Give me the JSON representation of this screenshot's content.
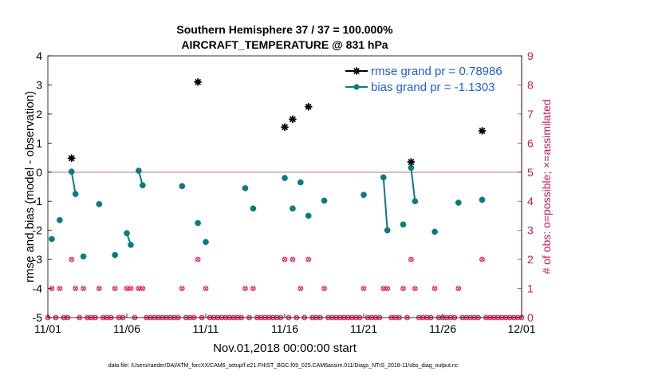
{
  "chart_data": {
    "type": "line",
    "title_line1": "Southern Hemisphere 37 / 37 = 100.000%",
    "title_line2": "AIRCRAFT_TEMPERATURE @ 831 hPa",
    "ylabel_left": "rmse and bias (model - observation)",
    "ylabel_right": "# of obs: o=possible; ×=assimilated",
    "xlabel": "Nov.01,2018 00:00:00 start",
    "footer": "data file: /Users/raeder/DAI/ATM_forcXX/CAM6_setup/f.e21.FHIST_BGC.f09_025.CAM6assim.011/Diags_NTrS_2018-11/obs_diag_output.nc",
    "ylim_left": [
      -5,
      4
    ],
    "ylim_right": [
      0,
      9
    ],
    "xlim": [
      1,
      31
    ],
    "x_ticks": [
      1,
      6,
      11,
      16,
      21,
      26,
      31
    ],
    "x_tick_labels": [
      "11/01",
      "11/06",
      "11/11",
      "11/16",
      "11/21",
      "11/26",
      "12/01"
    ],
    "y_left_ticks": [
      "-5",
      "-4",
      "-3",
      "-2",
      "-1",
      "0",
      "1",
      "2",
      "3",
      "4"
    ],
    "y_right_ticks": [
      "0",
      "1",
      "2",
      "3",
      "4",
      "5",
      "6",
      "7",
      "8",
      "9"
    ],
    "legend": [
      {
        "label": "rmse grand pr = 0.78986",
        "color": "#000000"
      },
      {
        "label": "bias grand pr = -1.1303",
        "color": "#0b7b7b"
      }
    ],
    "colors": {
      "rmse": "#000000",
      "bias": "#0b7b7b",
      "nobs": "#e0205e",
      "zero_line": "#c8aab8"
    },
    "series": [
      {
        "name": "rmse",
        "points": [
          [
            2.5,
            0.48
          ],
          [
            10.5,
            3.1
          ],
          [
            16.0,
            1.55
          ],
          [
            16.5,
            1.82
          ],
          [
            17.5,
            2.25
          ],
          [
            24.0,
            0.35
          ],
          [
            28.5,
            1.42
          ]
        ]
      },
      {
        "name": "bias",
        "segments": [
          [
            [
              1.25,
              -2.3
            ]
          ],
          [
            [
              1.75,
              -1.65
            ]
          ],
          [
            [
              2.5,
              0.02
            ],
            [
              2.75,
              -0.75
            ]
          ],
          [
            [
              3.25,
              -2.9
            ]
          ],
          [
            [
              4.25,
              -1.1
            ]
          ],
          [
            [
              5.25,
              -2.85
            ]
          ],
          [
            [
              6.0,
              -2.1
            ],
            [
              6.25,
              -2.5
            ]
          ],
          [
            [
              6.75,
              0.05
            ],
            [
              7.0,
              -0.45
            ]
          ],
          [
            [
              9.5,
              -0.48
            ]
          ],
          [
            [
              10.5,
              -1.75
            ]
          ],
          [
            [
              11.0,
              -2.4
            ]
          ],
          [
            [
              13.5,
              -0.55
            ]
          ],
          [
            [
              14.0,
              -1.25
            ]
          ],
          [
            [
              16.0,
              -0.2
            ]
          ],
          [
            [
              16.5,
              -1.25
            ]
          ],
          [
            [
              17.0,
              -0.35
            ]
          ],
          [
            [
              17.5,
              -1.5
            ]
          ],
          [
            [
              18.5,
              -0.98
            ]
          ],
          [
            [
              21.0,
              -0.78
            ]
          ],
          [
            [
              22.25,
              -0.18
            ],
            [
              22.5,
              -2.0
            ]
          ],
          [
            [
              23.5,
              -1.8
            ]
          ],
          [
            [
              24.0,
              0.15
            ],
            [
              24.25,
              -1.0
            ]
          ],
          [
            [
              25.5,
              -2.05
            ]
          ],
          [
            [
              27.0,
              -1.05
            ]
          ],
          [
            [
              28.5,
              -0.95
            ]
          ]
        ]
      }
    ],
    "nobs_possible": [
      [
        1.25,
        1
      ],
      [
        1.75,
        1
      ],
      [
        2.5,
        2
      ],
      [
        2.75,
        1
      ],
      [
        3.25,
        1
      ],
      [
        4.25,
        1
      ],
      [
        5.25,
        1
      ],
      [
        6.0,
        1
      ],
      [
        6.25,
        1
      ],
      [
        6.75,
        1
      ],
      [
        7.0,
        1
      ],
      [
        9.5,
        1
      ],
      [
        10.5,
        2
      ],
      [
        11.0,
        1
      ],
      [
        13.5,
        1
      ],
      [
        14.0,
        1
      ],
      [
        16.0,
        2
      ],
      [
        16.5,
        2
      ],
      [
        17.0,
        1
      ],
      [
        17.5,
        2
      ],
      [
        18.5,
        1
      ],
      [
        21.0,
        1
      ],
      [
        22.25,
        1
      ],
      [
        22.5,
        1
      ],
      [
        23.5,
        1
      ],
      [
        24.0,
        2
      ],
      [
        24.25,
        1
      ],
      [
        25.5,
        1
      ],
      [
        27.0,
        1
      ],
      [
        28.5,
        2
      ]
    ],
    "nobs_zero_x_start": 1,
    "nobs_zero_x_end": 31,
    "nobs_zero_step": 0.25
  }
}
